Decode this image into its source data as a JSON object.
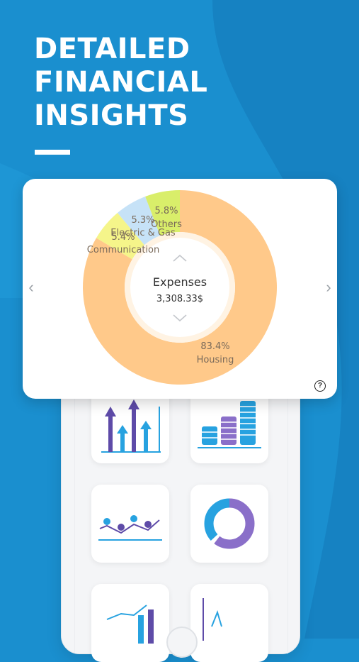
{
  "headline": {
    "lines": [
      "DETAILED",
      "FINANCIAL",
      "INSIGHTS"
    ]
  },
  "colors": {
    "background": "#1a8fcf",
    "background_light": "#27a2e0",
    "housing": "#ffc98a",
    "communication": "#f5f58a",
    "electric_gas": "#c6e2f7",
    "others": "#d9ee6a"
  },
  "chart_data": {
    "type": "pie",
    "center_title": "Expenses",
    "center_value": "3,308.33$",
    "slices": [
      {
        "label": "Housing",
        "percent": 83.4,
        "percent_text": "83.4%",
        "color": "#ffc98a"
      },
      {
        "label": "Communication",
        "percent": 5.4,
        "percent_text": "5.4%",
        "color": "#f5f58a"
      },
      {
        "label": "Electric & Gas",
        "percent": 5.3,
        "percent_text": "5.3%",
        "color": "#c6e2f7"
      },
      {
        "label": "Others",
        "percent": 5.8,
        "percent_text": "5.8%",
        "color": "#d9ee6a"
      }
    ]
  },
  "icons": {
    "prev": "chevron-left-icon",
    "next": "chevron-right-icon",
    "up": "chevron-up-icon",
    "down": "chevron-down-icon",
    "help": "help-icon"
  },
  "help": {
    "symbol": "?"
  },
  "tiles": [
    "bar-arrows-chart-icon",
    "coin-stacks-icon",
    "map-pins-line-icon",
    "ring-chart-icon",
    "trend-bar-chart-icon",
    "line-spike-chart-icon"
  ]
}
